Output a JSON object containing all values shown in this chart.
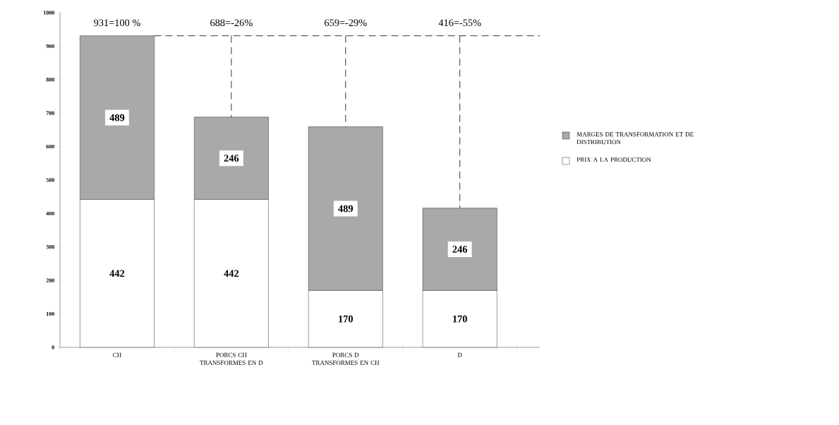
{
  "chart_data": {
    "type": "bar",
    "stacked": true,
    "categories": [
      "CH",
      "PORCS CH TRANSFORMES EN D",
      "PORCS D TRANSFORMES EN CH",
      "D"
    ],
    "series": [
      {
        "name": "PRIX A LA PRODUCTION",
        "color": "#ffffff",
        "values": [
          442,
          442,
          170,
          170
        ]
      },
      {
        "name": "MARGES DE TRANSFORMATION ET DE DISTRIBUTION",
        "color": "#a9a9a9",
        "values": [
          489,
          246,
          489,
          246
        ]
      }
    ],
    "ylim": [
      0,
      1000
    ],
    "yticks": [
      0,
      100,
      200,
      300,
      400,
      500,
      600,
      700,
      800,
      900,
      1000
    ],
    "data_labels": true,
    "annotations": [
      {
        "text": "931=100 %",
        "x": "CH",
        "y": 931
      },
      {
        "text": "688=-26%",
        "x": "PORCS CH TRANSFORMES EN D",
        "y": 688
      },
      {
        "text": "659=-29%",
        "x": "PORCS D TRANSFORMES EN CH",
        "y": 659
      },
      {
        "text": "416=-55%",
        "x": "D",
        "y": 416
      }
    ],
    "ref_lines": [
      {
        "axis": "y",
        "value": 931,
        "line_style": "dashed"
      }
    ],
    "legend": "right",
    "grid": false
  }
}
